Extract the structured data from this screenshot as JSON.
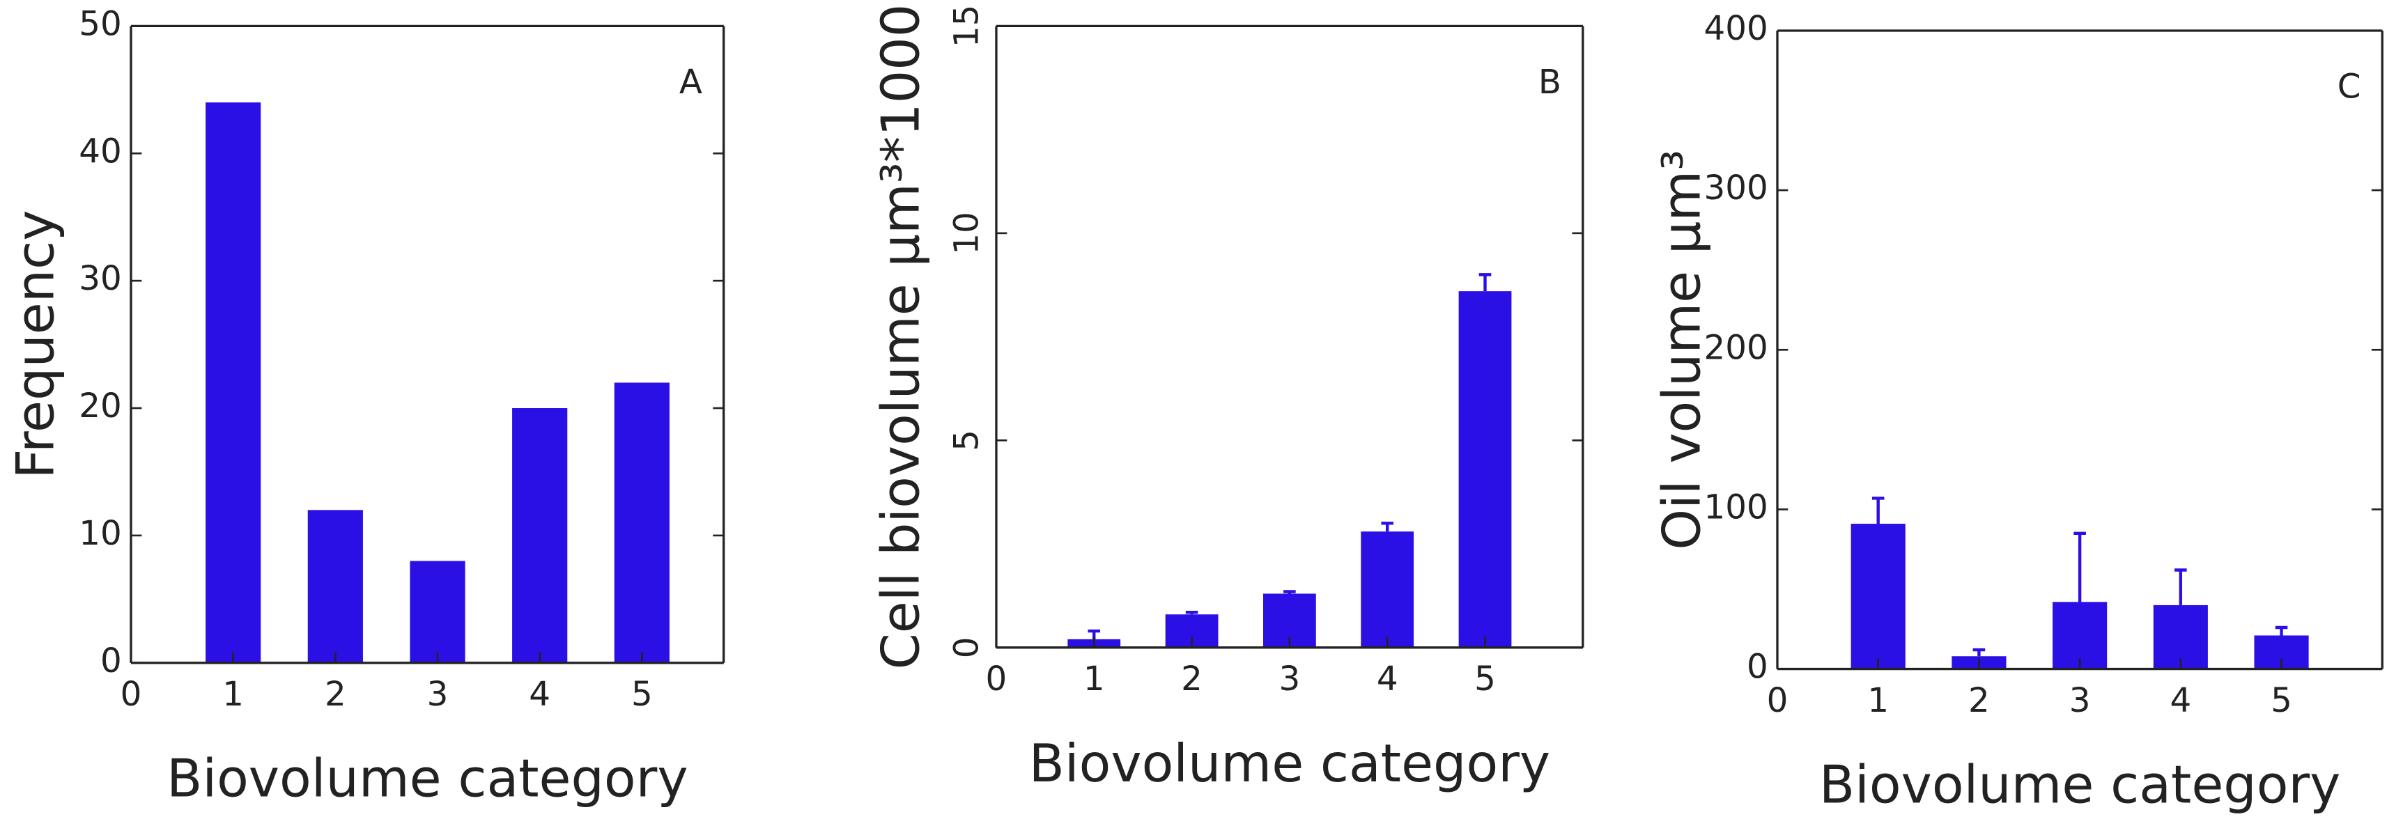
{
  "chart_data": [
    {
      "type": "bar",
      "panel_label": "A",
      "xlabel": "Biovolume category",
      "ylabel": "Frequency",
      "x": [
        1,
        2,
        3,
        4,
        5
      ],
      "values": [
        44,
        12,
        8,
        20,
        22
      ],
      "color": "#2b10e6",
      "xlim": [
        0,
        5.8
      ],
      "xticks": [
        0,
        1,
        2,
        3,
        4,
        5
      ],
      "ylim": [
        0,
        50
      ],
      "yticks": [
        0,
        10,
        20,
        30,
        40,
        50
      ]
    },
    {
      "type": "bar",
      "panel_label": "B",
      "xlabel": "Biovolume category",
      "ylabel": "Cell biovolume µm³*1000",
      "x": [
        1,
        2,
        3,
        4,
        5
      ],
      "values": [
        0.2,
        0.8,
        1.3,
        2.8,
        8.6
      ],
      "errors": [
        0.2,
        0.05,
        0.05,
        0.2,
        0.4
      ],
      "color": "#2b10e6",
      "xlim": [
        0,
        6
      ],
      "xticks": [
        0,
        1,
        2,
        3,
        4,
        5
      ],
      "ylim": [
        0,
        15
      ],
      "yticks": [
        0,
        5,
        10,
        15
      ]
    },
    {
      "type": "bar",
      "panel_label": "C",
      "xlabel": "Biovolume category",
      "ylabel": "Oil volume µm³",
      "x": [
        1,
        2,
        3,
        4,
        5
      ],
      "values": [
        91,
        8,
        42,
        40,
        21
      ],
      "errors": [
        16,
        4,
        43,
        22,
        5
      ],
      "color": "#2b10e6",
      "xlim": [
        0,
        6
      ],
      "xticks": [
        0,
        1,
        2,
        3,
        4,
        5
      ],
      "ylim": [
        0,
        400
      ],
      "yticks": [
        0,
        100,
        200,
        300,
        400
      ]
    }
  ]
}
